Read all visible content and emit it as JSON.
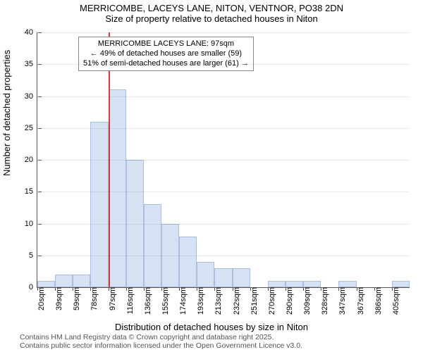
{
  "title_line1": "MERRICOMBE, LACEYS LANE, NITON, VENTNOR, PO38 2DN",
  "title_line2": "Size of property relative to detached houses in Niton",
  "ylabel": "Number of detached properties",
  "xlabel": "Distribution of detached houses by size in Niton",
  "footer_line1": "Contains HM Land Registry data © Crown copyright and database right 2025.",
  "footer_line2": "Contains public sector information licensed under the Open Government Licence v3.0.",
  "chart": {
    "type": "histogram",
    "ylim": [
      0,
      40
    ],
    "ytick_step": 5,
    "xtick_labels": [
      "20sqm",
      "39sqm",
      "59sqm",
      "78sqm",
      "97sqm",
      "116sqm",
      "136sqm",
      "155sqm",
      "174sqm",
      "193sqm",
      "213sqm",
      "232sqm",
      "251sqm",
      "270sqm",
      "290sqm",
      "309sqm",
      "328sqm",
      "347sqm",
      "367sqm",
      "386sqm",
      "405sqm"
    ],
    "bars": [
      1,
      2,
      2,
      26,
      31,
      20,
      13,
      10,
      8,
      4,
      3,
      3,
      0,
      1,
      1,
      1,
      0,
      1,
      0,
      0,
      1
    ],
    "bar_fill": "#d6e2f3",
    "bar_border": "#a8bfe0",
    "marker_line_color": "#d73c3c",
    "marker_x_index": 4,
    "background_color": "#ffffff",
    "axis_color": "#555555"
  },
  "annotation": {
    "line1": "MERRICOMBE LACEYS LANE: 97sqm",
    "line2": "← 49% of detached houses are smaller (59)",
    "line3": "51% of semi-detached houses are larger (61) →"
  }
}
